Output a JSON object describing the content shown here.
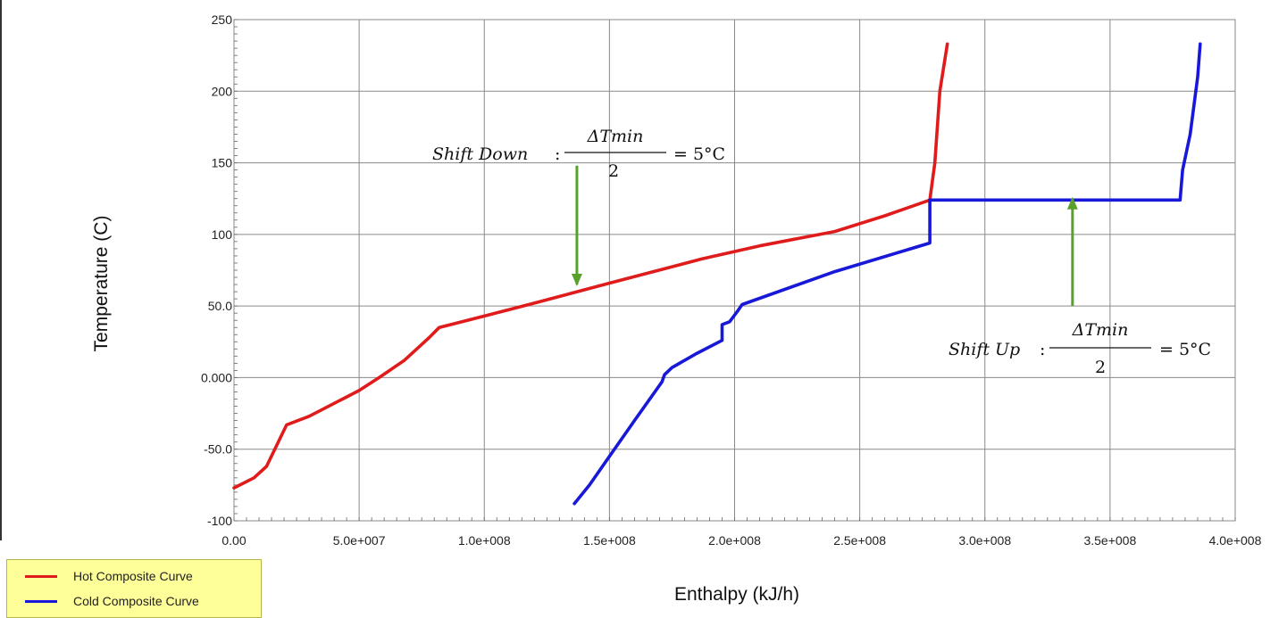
{
  "chart_data": {
    "type": "line",
    "xlabel": "Enthalpy (kJ/h)",
    "ylabel": "Temperature (C)",
    "xlim": [
      0,
      400000000
    ],
    "ylim": [
      -100,
      250
    ],
    "x_ticks": [
      0,
      50000000,
      100000000,
      150000000,
      200000000,
      250000000,
      300000000,
      350000000,
      400000000
    ],
    "x_tick_labels": [
      "0.00",
      "5.0e+007",
      "1.0e+008",
      "1.5e+008",
      "2.0e+008",
      "2.5e+008",
      "3.0e+008",
      "3.5e+008",
      "4.0e+008"
    ],
    "y_ticks": [
      -100,
      -50,
      0,
      50,
      100,
      150,
      200,
      250
    ],
    "y_tick_labels": [
      "-100",
      "-50.0",
      "0.000",
      "50.0",
      "100",
      "150",
      "200",
      "250"
    ],
    "grid": true,
    "legend_position": "bottom-left",
    "series": [
      {
        "name": "Hot Composite Curve",
        "color": "#e01b1b",
        "x": [
          0,
          8000000,
          13000000,
          21000000,
          30000000,
          50000000,
          58000000,
          68000000,
          78000000,
          82000000,
          100000000,
          120000000,
          150000000,
          185000000,
          187000000,
          210000000,
          240000000,
          260000000,
          278000000,
          280000000,
          282000000,
          285000000
        ],
        "y": [
          -77,
          -70,
          -62,
          -33,
          -27,
          -9,
          0,
          12,
          28,
          35,
          43,
          52,
          66,
          82,
          83,
          92,
          102,
          113,
          124,
          150,
          200,
          233
        ]
      },
      {
        "name": "Cold Composite Curve",
        "color": "#1818d8",
        "x": [
          136000000,
          142000000,
          150000000,
          160000000,
          171000000,
          172000000,
          175000000,
          185000000,
          195000000,
          195000000,
          198000000,
          201000000,
          203000000,
          240000000,
          278000000,
          278000000,
          300000000,
          337000000,
          378000000,
          379000000,
          382000000,
          385000000,
          386000000
        ],
        "y": [
          -88,
          -75,
          -55,
          -30,
          -3,
          2,
          7,
          17,
          26,
          37,
          39,
          46,
          51,
          74,
          94,
          124,
          124,
          124,
          124,
          145,
          170,
          210,
          233
        ]
      }
    ],
    "annotations": {
      "shift_down": {
        "prefix": "Shift Down",
        "numerator": "ΔTmin",
        "denominator": "2",
        "suffix": "= 5°C"
      },
      "shift_up": {
        "prefix": "Shift Up",
        "numerator": "ΔTmin",
        "denominator": "2",
        "suffix": "= 5°C"
      },
      "arrow_color": "#5aa02c",
      "shift_down_arrow": {
        "x": 137000000,
        "y_from": 148,
        "y_to": 65
      },
      "shift_up_arrow": {
        "x": 335000000,
        "y_from": 50,
        "y_to": 125
      }
    },
    "legend": {
      "background": "#ffff99"
    }
  }
}
